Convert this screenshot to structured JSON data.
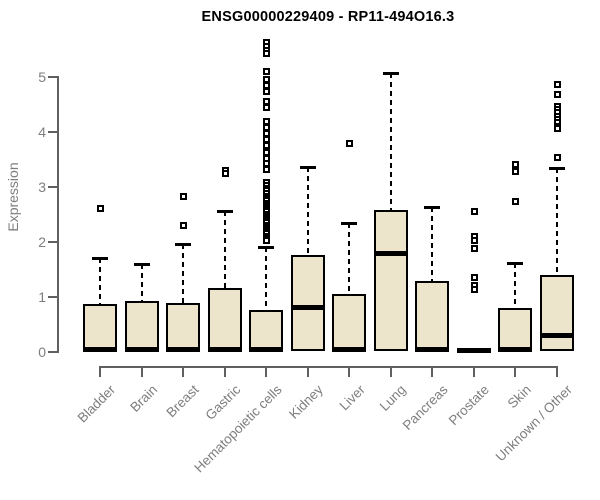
{
  "chart_data": {
    "type": "boxplot",
    "title": "ENSG00000229409 - RP11-494O16.3",
    "ylabel": "Expression",
    "xlabel": "",
    "yticks": [
      0,
      1,
      2,
      3,
      4,
      5
    ],
    "ylim": [
      0,
      5.75
    ],
    "grid": false,
    "legend": false,
    "categories": [
      "Bladder",
      "Brain",
      "Breast",
      "Gastric",
      "Hematopoietic cells",
      "Kidney",
      "Liver",
      "Lung",
      "Pancreas",
      "Prostate",
      "Skin",
      "Unknown / Other"
    ],
    "boxes": [
      {
        "category": "Bladder",
        "whisker_low": 0,
        "q1": 0,
        "median": 0.04,
        "q3": 0.86,
        "whisker_high": 1.7,
        "outliers": [
          2.6
        ]
      },
      {
        "category": "Brain",
        "whisker_low": 0,
        "q1": 0,
        "median": 0.04,
        "q3": 0.91,
        "whisker_high": 1.59,
        "outliers": []
      },
      {
        "category": "Breast",
        "whisker_low": 0,
        "q1": 0,
        "median": 0.04,
        "q3": 0.88,
        "whisker_high": 1.95,
        "outliers": [
          2.82,
          2.3
        ]
      },
      {
        "category": "Gastric",
        "whisker_low": 0,
        "q1": 0,
        "median": 0.04,
        "q3": 1.15,
        "whisker_high": 2.55,
        "outliers": [
          3.3,
          3.24
        ]
      },
      {
        "category": "Hematopoietic cells",
        "whisker_low": 0,
        "q1": 0,
        "median": 0.04,
        "q3": 0.74,
        "whisker_high": 1.9,
        "outliers": [
          5.62,
          5.55,
          5.48,
          5.42,
          5.1,
          4.95,
          4.84,
          4.73,
          4.55,
          4.44,
          4.18,
          4.07,
          3.96,
          3.85,
          3.75,
          3.62,
          3.51,
          3.42,
          3.31,
          3.07,
          3.02,
          2.97,
          2.92,
          2.87,
          2.82,
          2.78,
          2.74,
          2.7,
          2.66,
          2.62,
          2.58,
          2.54,
          2.5,
          2.46,
          2.42,
          2.38,
          2.34,
          2.3,
          2.26,
          2.22,
          2.18,
          2.14,
          2.1,
          2.06,
          2.02
        ]
      },
      {
        "category": "Kidney",
        "whisker_low": 0,
        "q1": 0,
        "median": 0.8,
        "q3": 1.75,
        "whisker_high": 3.35,
        "outliers": []
      },
      {
        "category": "Liver",
        "whisker_low": 0,
        "q1": 0,
        "median": 0.04,
        "q3": 1.03,
        "whisker_high": 2.33,
        "outliers": [
          3.78
        ]
      },
      {
        "category": "Lung",
        "whisker_low": 0,
        "q1": 0,
        "median": 1.78,
        "q3": 2.56,
        "whisker_high": 5.06,
        "outliers": []
      },
      {
        "category": "Pancreas",
        "whisker_low": 0,
        "q1": 0,
        "median": 0.04,
        "q3": 1.28,
        "whisker_high": 2.62,
        "outliers": []
      },
      {
        "category": "Prostate",
        "whisker_low": 0,
        "q1": 0,
        "median": 0.02,
        "q3": 0.04,
        "whisker_high": 0.05,
        "outliers": [
          2.55,
          2.1,
          2.02,
          1.87,
          1.34,
          1.2,
          1.12
        ]
      },
      {
        "category": "Skin",
        "whisker_low": 0,
        "q1": 0,
        "median": 0.04,
        "q3": 0.79,
        "whisker_high": 1.6,
        "outliers": [
          3.4,
          3.27,
          2.72
        ]
      },
      {
        "category": "Unknown / Other",
        "whisker_low": 0,
        "q1": 0,
        "median": 0.3,
        "q3": 1.38,
        "whisker_high": 3.33,
        "outliers": [
          4.85,
          4.67,
          4.45,
          4.4,
          4.34,
          4.28,
          4.22,
          4.16,
          4.1,
          4.05,
          3.52
        ]
      }
    ],
    "style": {
      "box_fill": "#ece5cb",
      "box_border": "#000000",
      "median_color": "#000000",
      "whisker_color": "#000000",
      "axis_color": "#606060",
      "label_color": "#7e7e7e",
      "title_color": "#000000",
      "background": "#ffffff"
    }
  }
}
